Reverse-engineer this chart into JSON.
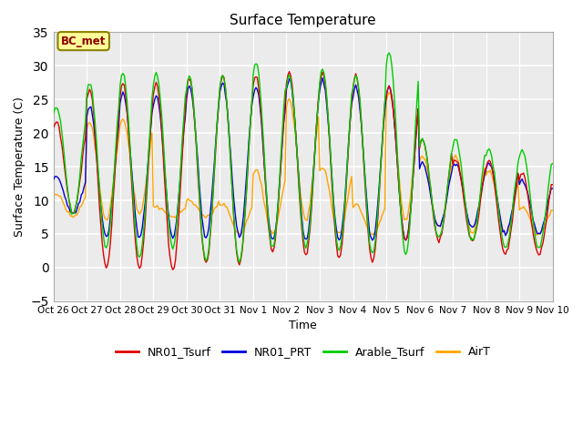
{
  "title": "Surface Temperature",
  "ylabel": "Surface Temperature (C)",
  "xlabel": "Time",
  "ylim": [
    -5,
    35
  ],
  "annotation": "BC_met",
  "annotation_bg": "#FFFF99",
  "annotation_text_color": "#8B0000",
  "annotation_edge_color": "#8B8000",
  "bg_color": "#EBEBEB",
  "legend_labels": [
    "NR01_Tsurf",
    "NR01_PRT",
    "Arable_Tsurf",
    "AirT"
  ],
  "line_colors": [
    "#DD0000",
    "#0000DD",
    "#00CC00",
    "#FFA500"
  ],
  "xtick_labels": [
    "Oct 26",
    "Oct 27",
    "Oct 28",
    "Oct 29",
    "Oct 30",
    "Oct 31",
    "Nov 1",
    "Nov 2",
    "Nov 3",
    "Nov 4",
    "Nov 5",
    "Nov 6",
    "Nov 7",
    "Nov 8",
    "Nov 9",
    "Nov 10"
  ],
  "xtick_positions": [
    0,
    24,
    48,
    72,
    96,
    120,
    144,
    168,
    192,
    216,
    240,
    264,
    288,
    312,
    336,
    360
  ],
  "ytick_positions": [
    -5,
    0,
    5,
    10,
    15,
    20,
    25,
    30,
    35
  ],
  "day_peaks": [
    21.5,
    26.5,
    27.5,
    27.5,
    28,
    28.5,
    28.5,
    29,
    29,
    28.5,
    27,
    19,
    16,
    16,
    14,
    14
  ],
  "day_troughs_NR01": [
    8,
    0,
    0,
    -0.5,
    0.5,
    0.5,
    2.5,
    2,
    1.5,
    1,
    4,
    4,
    4,
    2,
    2,
    2
  ],
  "day_peaks_green": [
    24,
    27.5,
    29,
    29,
    28.5,
    28.5,
    30.5,
    28.5,
    29.5,
    28.5,
    32,
    19,
    19,
    17.5,
    17.5,
    17.5
  ],
  "day_troughs_green": [
    8,
    3,
    1.5,
    3,
    1,
    1,
    3,
    3,
    2.5,
    2,
    2,
    4.5,
    4,
    3,
    3,
    3
  ],
  "day_peaks_blue": [
    13.5,
    24,
    26,
    25.5,
    27,
    27.5,
    27,
    28,
    28,
    27,
    27,
    15.5,
    15.5,
    15.5,
    13,
    13
  ],
  "day_troughs_blue": [
    8,
    4.5,
    4.5,
    4.5,
    4.5,
    4.5,
    4,
    4,
    4,
    4,
    4,
    6,
    6,
    5,
    5,
    5
  ],
  "day_peaks_orange": [
    11,
    21.5,
    22,
    9,
    10,
    9.5,
    14.5,
    25,
    15,
    9.5,
    26,
    16.5,
    16.5,
    14.5,
    9,
    13
  ],
  "day_troughs_orange": [
    7.5,
    7,
    8,
    7.5,
    7.5,
    5,
    5,
    7,
    5,
    5,
    7,
    6,
    5,
    5,
    5,
    5
  ]
}
